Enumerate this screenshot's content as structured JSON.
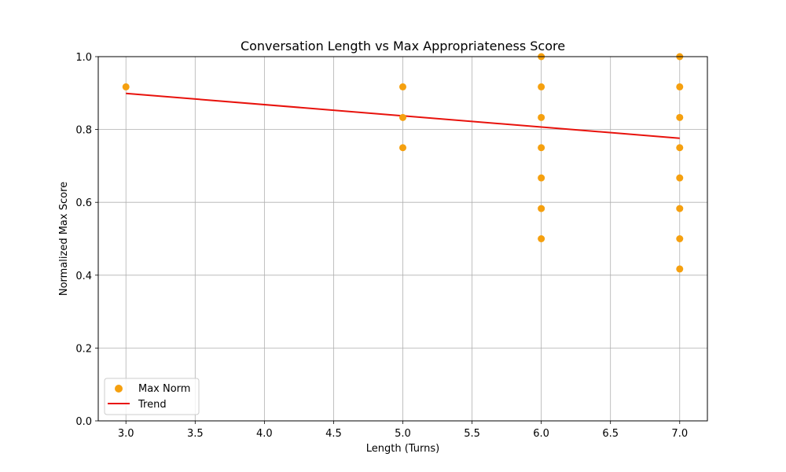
{
  "chart_data": {
    "type": "scatter",
    "title": "Conversation Length vs Max Appropriateness Score",
    "xlabel": "Length (Turns)",
    "ylabel": "Normalized Max Score",
    "xlim": [
      2.8,
      7.2
    ],
    "ylim": [
      0.0,
      1.0
    ],
    "xticks": [
      3.0,
      3.5,
      4.0,
      4.5,
      5.0,
      5.5,
      6.0,
      6.5,
      7.0
    ],
    "xtick_labels": [
      "3.0",
      "3.5",
      "4.0",
      "4.5",
      "5.0",
      "5.5",
      "6.0",
      "6.5",
      "7.0"
    ],
    "yticks": [
      0.0,
      0.2,
      0.4,
      0.6,
      0.8,
      1.0
    ],
    "ytick_labels": [
      "0.0",
      "0.2",
      "0.4",
      "0.6",
      "0.8",
      "1.0"
    ],
    "grid": true,
    "legend_position": "lower-left",
    "series": [
      {
        "name": "Max Norm",
        "kind": "scatter",
        "color": "#f5a00f",
        "points": [
          {
            "x": 3,
            "y": 0.917
          },
          {
            "x": 5,
            "y": 0.917
          },
          {
            "x": 5,
            "y": 0.833
          },
          {
            "x": 5,
            "y": 0.75
          },
          {
            "x": 6,
            "y": 1.0
          },
          {
            "x": 6,
            "y": 0.917
          },
          {
            "x": 6,
            "y": 0.833
          },
          {
            "x": 6,
            "y": 0.75
          },
          {
            "x": 6,
            "y": 0.667
          },
          {
            "x": 6,
            "y": 0.583
          },
          {
            "x": 6,
            "y": 0.5
          },
          {
            "x": 7,
            "y": 1.0
          },
          {
            "x": 7,
            "y": 0.917
          },
          {
            "x": 7,
            "y": 0.833
          },
          {
            "x": 7,
            "y": 0.75
          },
          {
            "x": 7,
            "y": 0.667
          },
          {
            "x": 7,
            "y": 0.583
          },
          {
            "x": 7,
            "y": 0.5
          },
          {
            "x": 7,
            "y": 0.417
          }
        ]
      },
      {
        "name": "Trend",
        "kind": "line",
        "color": "#e8120c",
        "points": [
          {
            "x": 3,
            "y": 0.899
          },
          {
            "x": 7,
            "y": 0.776
          }
        ]
      }
    ]
  }
}
